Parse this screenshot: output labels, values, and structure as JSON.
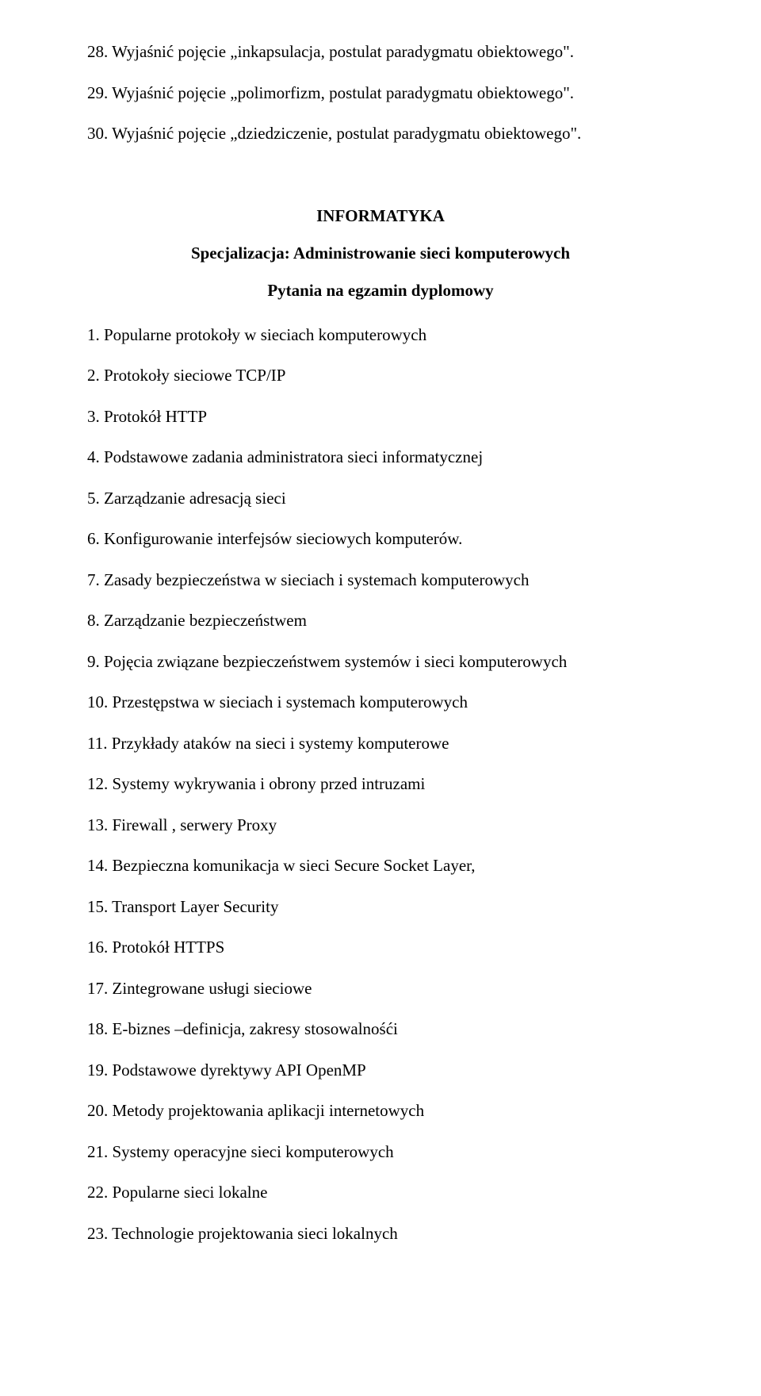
{
  "intro_items": [
    "28. Wyjaśnić pojęcie „inkapsulacja, postulat paradygmatu obiektowego\".",
    "29. Wyjaśnić pojęcie „polimorfizm, postulat paradygmatu obiektowego\".",
    "30. Wyjaśnić pojęcie „dziedziczenie, postulat paradygmatu obiektowego\"."
  ],
  "heading_main": "INFORMATYKA",
  "heading_spec": "Specjalizacja: Administrowanie sieci komputerowych",
  "heading_exam": "Pytania na egzamin dyplomowy",
  "items": [
    "1. Popularne  protokoły w sieciach komputerowych",
    "2. Protokoły sieciowe TCP/IP",
    "3. Protokół HTTP",
    "4. Podstawowe zadania administratora sieci informatycznej",
    "5. Zarządzanie adresacją sieci",
    "6. Konfigurowanie interfejsów sieciowych komputerów.",
    "7. Zasady bezpieczeństwa w sieciach i systemach komputerowych",
    "8.  Zarządzanie bezpieczeństwem",
    "9. Pojęcia związane bezpieczeństwem systemów i sieci komputerowych",
    "10. Przestępstwa w sieciach i systemach komputerowych",
    "11. Przykłady ataków na sieci i systemy komputerowe",
    "12.  Systemy wykrywania i obrony przed intruzami",
    "13. Firewall , serwery Proxy",
    "14.  Bezpieczna komunikacja w sieci Secure Socket Layer,",
    "15.  Transport Layer Security",
    "16. Protokół HTTPS",
    "17. Zintegrowane usługi sieciowe",
    "18. E-biznes –definicja, zakresy stosowalnośći",
    "19. Podstawowe dyrektywy API  OpenMP",
    "20. Metody projektowania aplikacji internetowych",
    "21. Systemy operacyjne sieci komputerowych",
    "22. Popularne sieci lokalne",
    "23. Technologie projektowania sieci lokalnych"
  ],
  "colors": {
    "text": "#000000",
    "background": "#ffffff"
  },
  "typography": {
    "base_fontsize_pt": 16,
    "heading_weight": "bold",
    "font_family": "Times New Roman"
  }
}
